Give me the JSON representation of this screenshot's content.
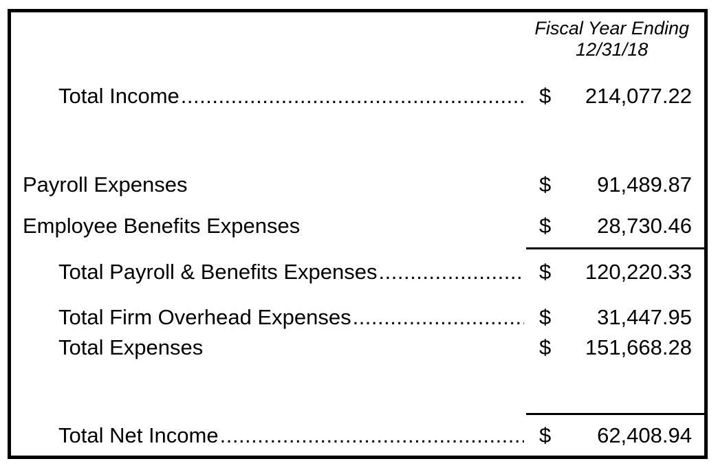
{
  "header": {
    "line1": "Fiscal Year Ending",
    "line2": "12/31/18"
  },
  "currency_symbol": "$",
  "leader_dots": "..........................................................................................................................",
  "rows": [
    {
      "label": "Total Income",
      "amount": "214,077.22"
    },
    {
      "label": "Payroll Expenses",
      "amount": "91,489.87"
    },
    {
      "label": "Employee Benefits Expenses",
      "amount": "28,730.46"
    },
    {
      "label": "Total Payroll & Benefits Expenses",
      "amount": "120,220.33"
    },
    {
      "label": "Total Firm Overhead Expenses",
      "amount": "31,447.95"
    },
    {
      "label": "Total Expenses",
      "amount": "151,668.28"
    },
    {
      "label": "Total Net Income",
      "amount": "62,408.94"
    }
  ],
  "colors": {
    "text": "#000000",
    "background": "#ffffff",
    "border": "#000000"
  }
}
